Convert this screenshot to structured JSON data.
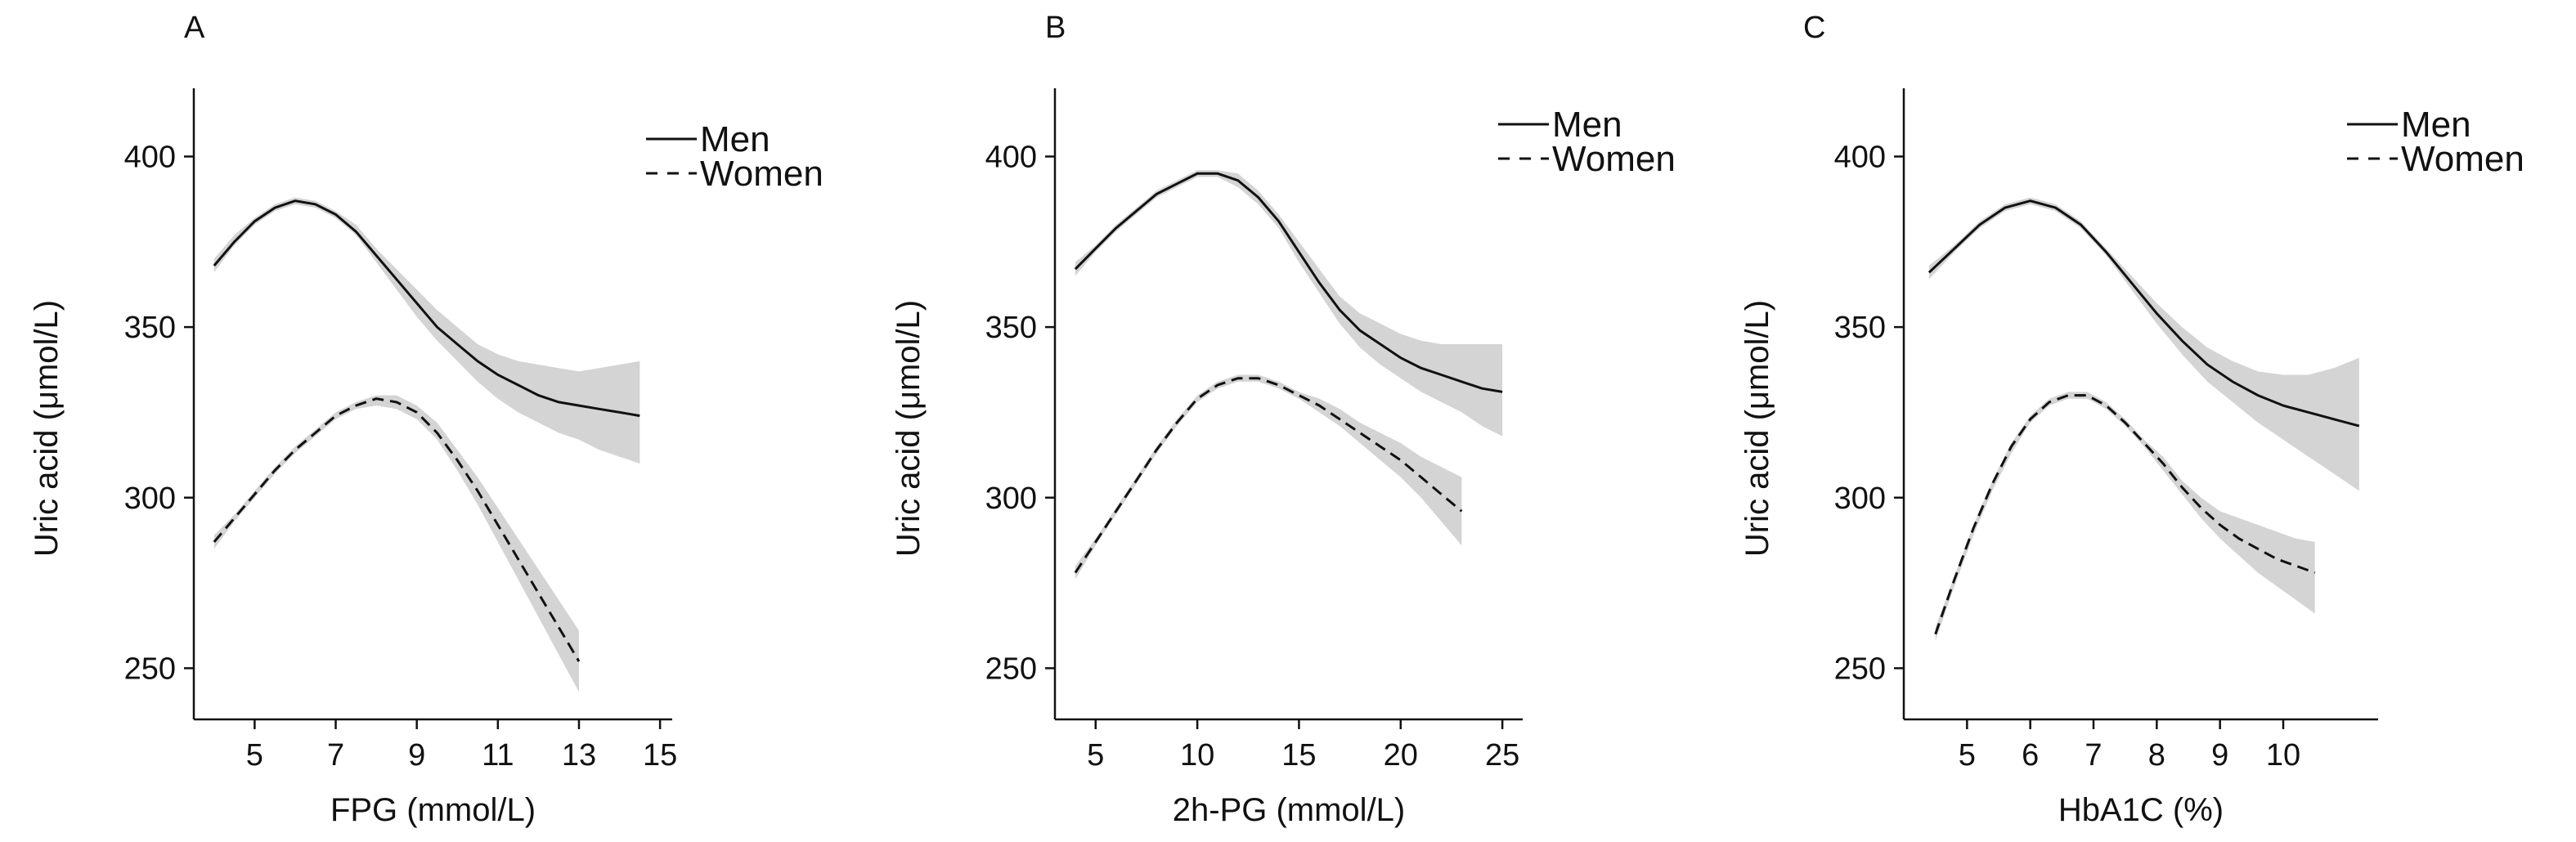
{
  "figure": {
    "background": "#ffffff",
    "line_color": "#111111",
    "band_color": "#d4d4d4"
  },
  "chart_data": [
    {
      "type": "line",
      "panel": "A",
      "title": "",
      "xlabel": "FPG (mmol/L)",
      "ylabel": "Uric acid (μmol/L)",
      "xlim": [
        3.5,
        15.3
      ],
      "ylim": [
        235,
        420
      ],
      "xticks": [
        5,
        7,
        9,
        11,
        13,
        15
      ],
      "yticks": [
        250,
        300,
        350,
        400
      ],
      "grid": false,
      "legend": "top-right",
      "series": [
        {
          "name": "Men",
          "style": "solid",
          "x": [
            4.0,
            4.5,
            5.0,
            5.5,
            6.0,
            6.5,
            7.0,
            7.5,
            8.0,
            8.5,
            9.0,
            9.5,
            10.0,
            10.5,
            11.0,
            11.5,
            12.0,
            12.5,
            13.0,
            13.5,
            14.0,
            14.5
          ],
          "y": [
            368,
            375,
            381,
            385,
            387,
            386,
            383,
            378,
            371,
            364,
            357,
            350,
            345,
            340,
            336,
            333,
            330,
            328,
            327,
            326,
            325,
            324
          ],
          "lower": [
            366,
            374,
            380,
            384,
            386,
            385,
            382,
            377,
            369,
            361,
            353,
            346,
            340,
            334,
            329,
            325,
            322,
            319,
            317,
            314,
            312,
            310
          ],
          "upper": [
            370,
            377,
            382,
            386,
            388,
            387,
            384,
            380,
            373,
            367,
            361,
            355,
            350,
            345,
            342,
            340,
            339,
            338,
            337,
            338,
            339,
            340
          ]
        },
        {
          "name": "Women",
          "style": "dashed",
          "x": [
            4.0,
            4.5,
            5.0,
            5.5,
            6.0,
            6.5,
            7.0,
            7.5,
            8.0,
            8.5,
            9.0,
            9.5,
            10.0,
            10.5,
            11.0,
            11.5,
            12.0,
            12.5,
            13.0
          ],
          "y": [
            287,
            294,
            301,
            308,
            314,
            319,
            324,
            327,
            329,
            328,
            325,
            319,
            311,
            302,
            292,
            282,
            272,
            262,
            252
          ],
          "lower": [
            285,
            293,
            300,
            307,
            313,
            318,
            323,
            326,
            327,
            326,
            323,
            317,
            308,
            298,
            287,
            276,
            265,
            254,
            243
          ],
          "upper": [
            289,
            295,
            302,
            309,
            315,
            320,
            325,
            328,
            330,
            330,
            327,
            322,
            314,
            306,
            297,
            288,
            279,
            270,
            261
          ]
        }
      ]
    },
    {
      "type": "line",
      "panel": "B",
      "title": "",
      "xlabel": "2h-PG (mmol/L)",
      "ylabel": "Uric acid (μmol/L)",
      "xlim": [
        3.0,
        26.0
      ],
      "ylim": [
        235,
        420
      ],
      "xticks": [
        5,
        10,
        15,
        20,
        25
      ],
      "yticks": [
        250,
        300,
        350,
        400
      ],
      "grid": false,
      "legend": "top-right",
      "series": [
        {
          "name": "Men",
          "style": "solid",
          "x": [
            4,
            5,
            6,
            7,
            8,
            9,
            10,
            11,
            12,
            13,
            14,
            15,
            16,
            17,
            18,
            19,
            20,
            21,
            22,
            23,
            24,
            25
          ],
          "y": [
            367,
            373,
            379,
            384,
            389,
            392,
            395,
            395,
            393,
            388,
            381,
            372,
            363,
            355,
            349,
            345,
            341,
            338,
            336,
            334,
            332,
            331
          ],
          "lower": [
            365,
            372,
            378,
            383,
            388,
            391,
            394,
            394,
            391,
            386,
            379,
            369,
            360,
            351,
            344,
            339,
            335,
            331,
            328,
            325,
            321,
            318
          ],
          "upper": [
            369,
            374,
            380,
            385,
            390,
            393,
            396,
            396,
            395,
            390,
            383,
            375,
            367,
            359,
            354,
            351,
            348,
            346,
            345,
            345,
            345,
            345
          ]
        },
        {
          "name": "Women",
          "style": "dashed",
          "x": [
            4,
            5,
            6,
            7,
            8,
            9,
            10,
            11,
            12,
            13,
            14,
            15,
            16,
            17,
            18,
            19,
            20,
            21,
            22,
            23
          ],
          "y": [
            278,
            287,
            296,
            305,
            314,
            322,
            329,
            333,
            335,
            335,
            333,
            330,
            327,
            323,
            319,
            315,
            311,
            306,
            301,
            296
          ],
          "lower": [
            276,
            286,
            295,
            304,
            313,
            321,
            328,
            332,
            334,
            334,
            332,
            329,
            325,
            321,
            316,
            311,
            306,
            300,
            293,
            286
          ],
          "upper": [
            280,
            288,
            297,
            306,
            315,
            323,
            330,
            334,
            336,
            336,
            334,
            331,
            329,
            326,
            322,
            319,
            316,
            312,
            309,
            306
          ]
        }
      ]
    },
    {
      "type": "line",
      "panel": "C",
      "title": "",
      "xlabel": "HbA1C (%)",
      "ylabel": "Uric acid (μmol/L)",
      "xlim": [
        4.0,
        11.5
      ],
      "ylim": [
        235,
        420
      ],
      "xticks": [
        5,
        6,
        7,
        8,
        9,
        10
      ],
      "yticks": [
        250,
        300,
        350,
        400
      ],
      "grid": false,
      "legend": "top-right",
      "series": [
        {
          "name": "Men",
          "style": "solid",
          "x": [
            4.4,
            4.8,
            5.2,
            5.6,
            6.0,
            6.4,
            6.8,
            7.2,
            7.6,
            8.0,
            8.4,
            8.8,
            9.2,
            9.6,
            10.0,
            10.4,
            10.8,
            11.2
          ],
          "y": [
            366,
            373,
            380,
            385,
            387,
            385,
            380,
            372,
            363,
            354,
            346,
            339,
            334,
            330,
            327,
            325,
            323,
            321
          ],
          "lower": [
            364,
            372,
            379,
            384,
            386,
            384,
            379,
            371,
            361,
            351,
            342,
            334,
            328,
            322,
            317,
            312,
            307,
            302
          ],
          "upper": [
            368,
            374,
            381,
            386,
            388,
            386,
            381,
            373,
            365,
            357,
            350,
            344,
            340,
            337,
            336,
            336,
            338,
            341
          ]
        },
        {
          "name": "Women",
          "style": "dashed",
          "x": [
            4.5,
            4.8,
            5.1,
            5.4,
            5.7,
            6.0,
            6.3,
            6.6,
            6.9,
            7.2,
            7.5,
            7.8,
            8.1,
            8.4,
            8.7,
            9.0,
            9.3,
            9.6,
            9.9,
            10.2,
            10.5
          ],
          "y": [
            260,
            276,
            291,
            304,
            315,
            323,
            328,
            330,
            330,
            327,
            322,
            316,
            310,
            303,
            297,
            292,
            288,
            285,
            282,
            280,
            278
          ],
          "lower": [
            258,
            274,
            289,
            302,
            313,
            322,
            327,
            329,
            329,
            326,
            321,
            315,
            308,
            301,
            294,
            288,
            283,
            278,
            274,
            270,
            266
          ],
          "upper": [
            262,
            277,
            292,
            305,
            316,
            324,
            329,
            331,
            331,
            328,
            323,
            317,
            312,
            305,
            300,
            296,
            294,
            292,
            290,
            288,
            287
          ]
        }
      ]
    }
  ]
}
